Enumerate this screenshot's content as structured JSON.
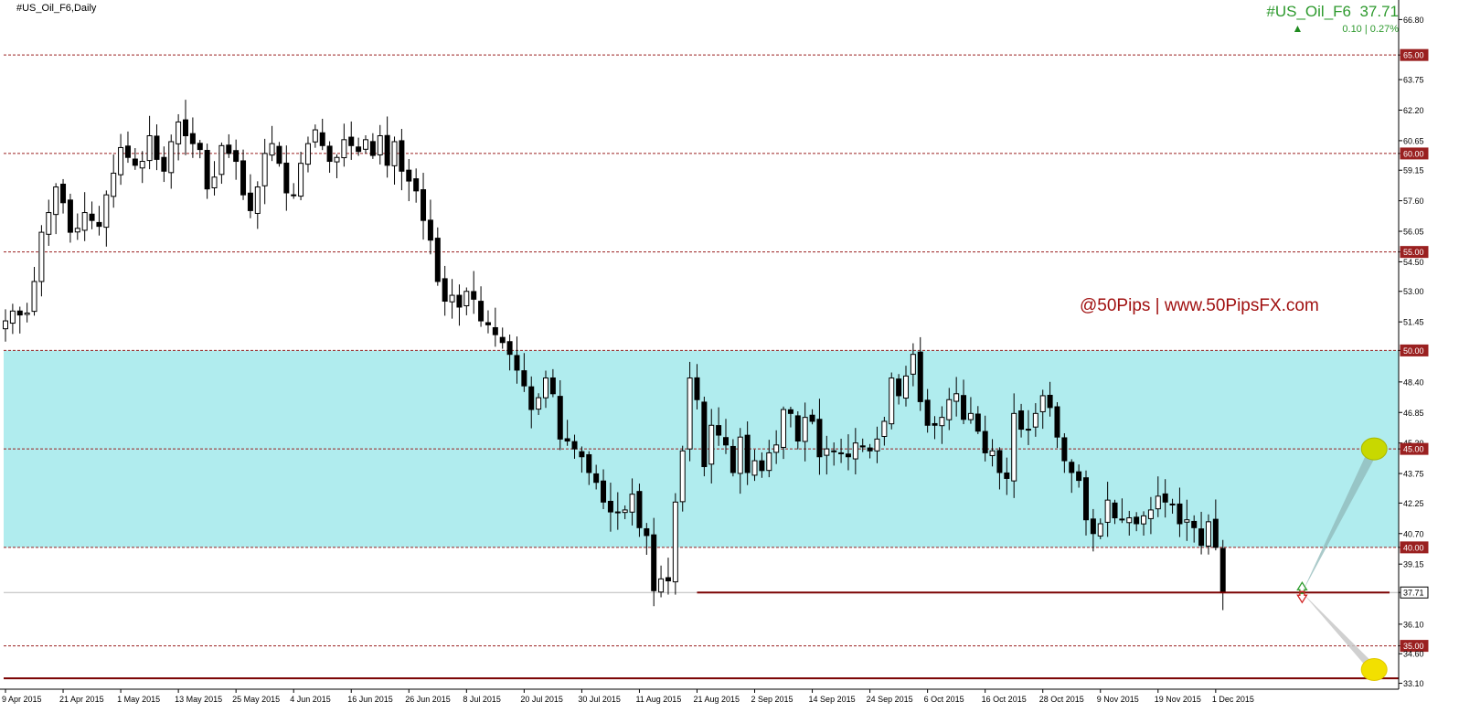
{
  "header": {
    "title": "#US_Oil_F6,Daily",
    "symbol": "#US_Oil_F6",
    "price": "37.71",
    "change": "0.10",
    "change_pct": "0.27%",
    "change_arrow": "▲"
  },
  "watermark": "@50Pips | www.50PipsFX.com",
  "colors": {
    "zone": "#b0ecee",
    "level_line": "#9a2020",
    "bull_candle": "#ffffff",
    "bear_candle": "#000000",
    "support_line": "#7a0000",
    "marker": "#f2e000",
    "projection": "#8fb8b8",
    "up_arrow": "#2a9a2a",
    "down_arrow": "#d02020"
  },
  "chart_data": {
    "type": "candlestick",
    "ylim": [
      32.8,
      67.7
    ],
    "y_ticks": [
      "66.80",
      "65.00",
      "63.75",
      "62.20",
      "60.65",
      "60.00",
      "59.15",
      "57.60",
      "56.05",
      "55.00",
      "54.50",
      "53.00",
      "51.45",
      "50.00",
      "48.40",
      "46.85",
      "45.30",
      "45.00",
      "43.75",
      "42.25",
      "40.70",
      "40.00",
      "39.15",
      "37.71",
      "36.10",
      "35.00",
      "34.60",
      "33.10"
    ],
    "highlight_ticks": [
      "65.00",
      "60.00",
      "55.00",
      "50.00",
      "45.00",
      "40.00",
      "35.00"
    ],
    "current_price": 37.71,
    "x_labels": [
      "9 Apr 2015",
      "21 Apr 2015",
      "1 May 2015",
      "13 May 2015",
      "25 May 2015",
      "4 Jun 2015",
      "16 Jun 2015",
      "26 Jun 2015",
      "8 Jul 2015",
      "20 Jul 2015",
      "30 Jul 2015",
      "11 Aug 2015",
      "21 Aug 2015",
      "2 Sep 2015",
      "14 Sep 2015",
      "24 Sep 2015",
      "6 Oct 2015",
      "16 Oct 2015",
      "28 Oct 2015",
      "9 Nov 2015",
      "19 Nov 2015",
      "1 Dec 2015"
    ],
    "x_label_bars": [
      0,
      8,
      16,
      24,
      32,
      40,
      48,
      56,
      64,
      72,
      80,
      88,
      96,
      104,
      112,
      120,
      128,
      136,
      144,
      152,
      160,
      168
    ],
    "levels": [
      65,
      60,
      55,
      50,
      45,
      40,
      35
    ],
    "zone": [
      40,
      50
    ],
    "support_line": 37.71,
    "bottom_line": 33.35,
    "projection_markers": [
      {
        "x_bar": 190,
        "price": 45.0
      },
      {
        "x_bar": 190,
        "price": 33.8
      }
    ],
    "projection_apex": {
      "x_bar": 180,
      "price": 37.71
    },
    "closes": [
      51.5,
      52.0,
      51.8,
      51.9,
      53.5,
      56.0,
      57.0,
      58.3,
      57.5,
      56.0,
      56.2,
      57.0,
      56.6,
      56.3,
      57.9,
      59.0,
      60.3,
      59.8,
      59.4,
      59.6,
      60.9,
      59.7,
      59.1,
      60.6,
      61.6,
      60.9,
      60.5,
      60.2,
      58.2,
      58.8,
      60.4,
      60.0,
      59.6,
      57.9,
      57.1,
      58.3,
      60.0,
      60.5,
      59.5,
      58.0,
      57.9,
      59.5,
      60.5,
      61.2,
      60.4,
      59.6,
      59.8,
      60.7,
      60.4,
      60.1,
      60.7,
      59.9,
      60.9,
      59.4,
      60.6,
      59.1,
      58.6,
      58.1,
      56.6,
      55.6,
      53.5,
      52.5,
      52.8,
      52.2,
      53.0,
      52.6,
      51.5,
      51.3,
      50.8,
      50.4,
      49.8,
      49.0,
      48.2,
      47.0,
      47.6,
      48.6,
      47.8,
      45.5,
      45.4,
      45.0,
      44.6,
      43.8,
      43.3,
      42.3,
      41.8,
      41.8,
      41.9,
      42.7,
      41.0,
      40.6,
      37.8,
      38.4,
      38.3,
      42.3,
      44.9,
      48.6,
      47.5,
      44.1,
      46.2,
      45.7,
      45.2,
      43.8,
      45.6,
      43.8,
      44.4,
      43.9,
      44.8,
      45.2,
      47.0,
      46.8,
      45.4,
      46.6,
      46.4,
      44.6,
      45.0,
      44.9,
      44.8,
      44.6,
      45.3,
      45.1,
      44.9,
      45.5,
      46.4,
      48.6,
      47.7,
      48.7,
      49.8,
      47.4,
      46.2,
      46.2,
      46.6,
      47.5,
      47.8,
      46.5,
      46.8,
      45.9,
      44.8,
      44.9,
      43.8,
      43.5,
      46.8,
      46.0,
      46.0,
      46.8,
      47.7,
      47.1,
      45.6,
      44.4,
      43.8,
      43.4,
      41.4,
      40.7,
      41.2,
      42.4,
      41.5,
      41.4,
      41.5,
      41.2,
      41.6,
      41.9,
      42.6,
      42.3,
      42.2,
      41.2,
      41.4,
      41.0,
      40.1,
      41.3,
      40.0,
      37.71
    ]
  }
}
